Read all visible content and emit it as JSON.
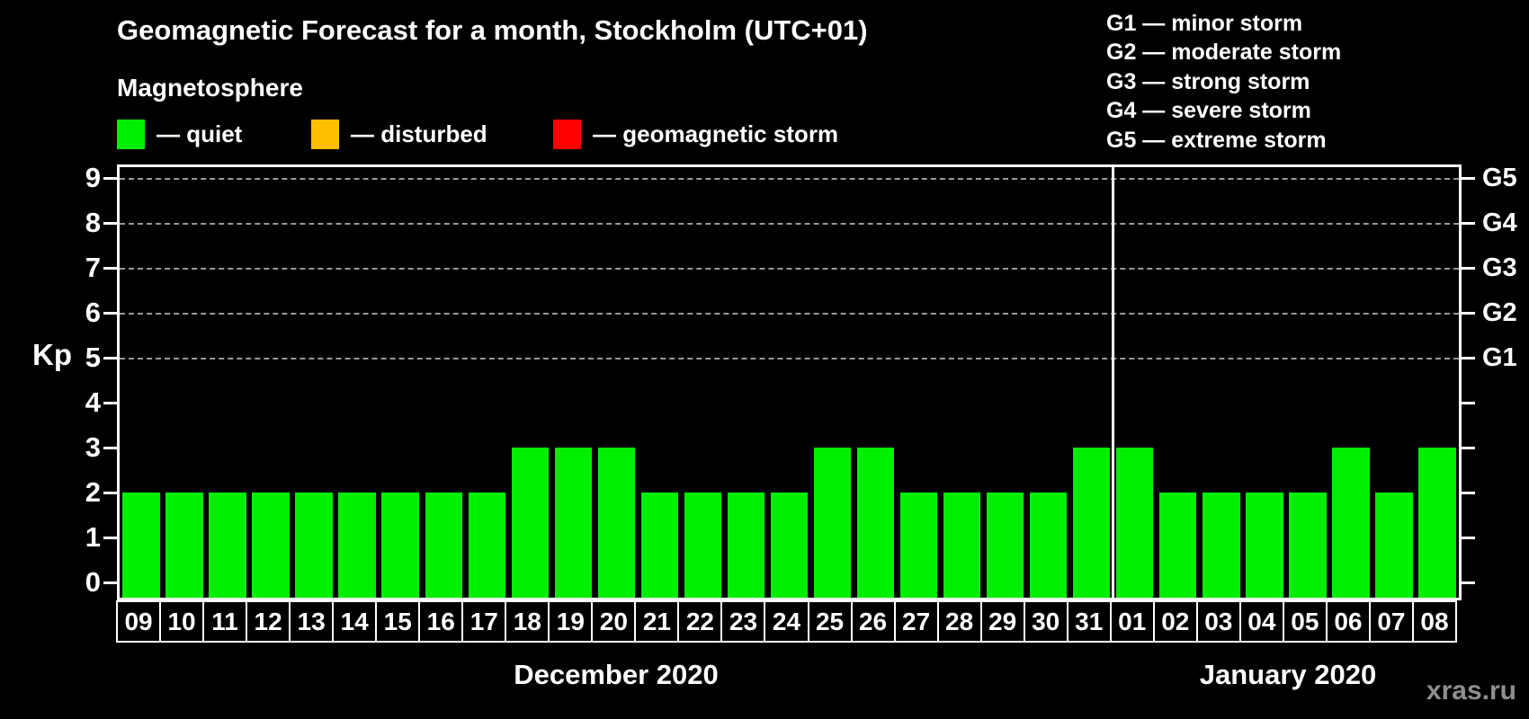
{
  "chart_data": {
    "type": "bar",
    "title": "Geomagnetic Forecast for a month, Stockholm (UTC+01)",
    "ylabel": "Kp",
    "xlabel": "",
    "ylim": [
      0,
      9
    ],
    "yticks": [
      0,
      1,
      2,
      3,
      4,
      5,
      6,
      7,
      8,
      9
    ],
    "grid_levels": [
      5,
      6,
      7,
      8,
      9
    ],
    "grid_on": true,
    "bar_color": "#00ee00",
    "right_axis": [
      {
        "kp": 5,
        "label": "G1"
      },
      {
        "kp": 6,
        "label": "G2"
      },
      {
        "kp": 7,
        "label": "G3"
      },
      {
        "kp": 8,
        "label": "G4"
      },
      {
        "kp": 9,
        "label": "G5"
      }
    ],
    "months": [
      {
        "label": "December 2020",
        "days": [
          {
            "day": "09",
            "kp": 2
          },
          {
            "day": "10",
            "kp": 2
          },
          {
            "day": "11",
            "kp": 2
          },
          {
            "day": "12",
            "kp": 2
          },
          {
            "day": "13",
            "kp": 2
          },
          {
            "day": "14",
            "kp": 2
          },
          {
            "day": "15",
            "kp": 2
          },
          {
            "day": "16",
            "kp": 2
          },
          {
            "day": "17",
            "kp": 2
          },
          {
            "day": "18",
            "kp": 3
          },
          {
            "day": "19",
            "kp": 3
          },
          {
            "day": "20",
            "kp": 3
          },
          {
            "day": "21",
            "kp": 2
          },
          {
            "day": "22",
            "kp": 2
          },
          {
            "day": "23",
            "kp": 2
          },
          {
            "day": "24",
            "kp": 2
          },
          {
            "day": "25",
            "kp": 3
          },
          {
            "day": "26",
            "kp": 3
          },
          {
            "day": "27",
            "kp": 2
          },
          {
            "day": "28",
            "kp": 2
          },
          {
            "day": "29",
            "kp": 2
          },
          {
            "day": "30",
            "kp": 2
          },
          {
            "day": "31",
            "kp": 3
          }
        ]
      },
      {
        "label": "January 2020",
        "days": [
          {
            "day": "01",
            "kp": 3
          },
          {
            "day": "02",
            "kp": 2
          },
          {
            "day": "03",
            "kp": 2
          },
          {
            "day": "04",
            "kp": 2
          },
          {
            "day": "05",
            "kp": 2
          },
          {
            "day": "06",
            "kp": 3
          },
          {
            "day": "07",
            "kp": 2
          },
          {
            "day": "08",
            "kp": 3
          }
        ]
      }
    ]
  },
  "magnetosphere": {
    "heading": "Magnetosphere",
    "items": [
      {
        "label": "— quiet",
        "color": "#00ee00"
      },
      {
        "label": "— disturbed",
        "color": "#ffbf00"
      },
      {
        "label": "— geomagnetic storm",
        "color": "#ff0000"
      }
    ]
  },
  "storm_scale": {
    "lines": [
      "G1 — minor storm",
      "G2 — moderate storm",
      "G3 — strong storm",
      "G4 — severe storm",
      "G5 — extreme storm"
    ]
  },
  "watermark": "xras.ru"
}
